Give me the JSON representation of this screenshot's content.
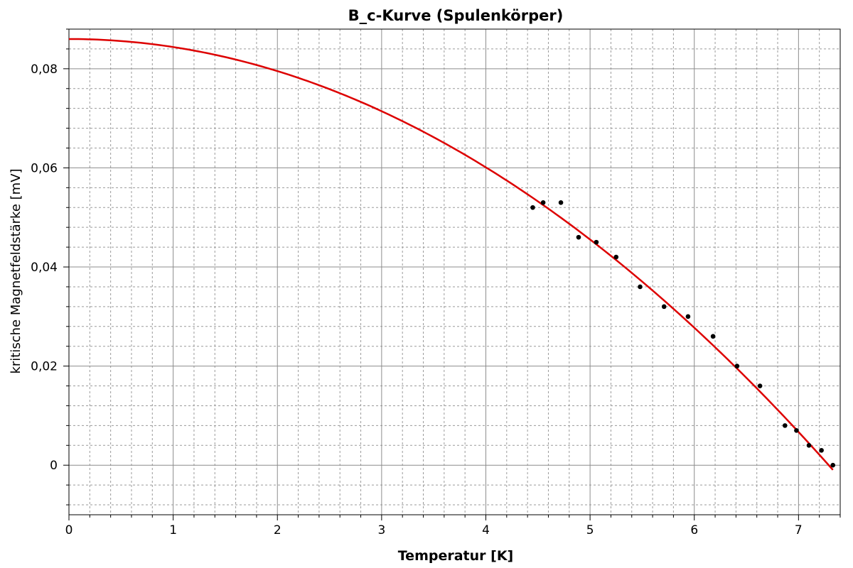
{
  "chart_data": {
    "type": "scatter",
    "title": "B_c-Kurve (Spulenkörper)",
    "xlabel": "Temperatur [K]",
    "ylabel": "kritische Magnetfeldstärke [mV]",
    "xlim": [
      0,
      7.4
    ],
    "ylim": [
      -0.01,
      0.088
    ],
    "x_ticks": [
      {
        "value": 0,
        "label": "0"
      },
      {
        "value": 1,
        "label": "1"
      },
      {
        "value": 2,
        "label": "2"
      },
      {
        "value": 3,
        "label": "3"
      },
      {
        "value": 4,
        "label": "4"
      },
      {
        "value": 5,
        "label": "5"
      },
      {
        "value": 6,
        "label": "6"
      },
      {
        "value": 7,
        "label": "7"
      }
    ],
    "y_ticks": [
      {
        "value": 0,
        "label": "0"
      },
      {
        "value": 0.02,
        "label": "0,02"
      },
      {
        "value": 0.04,
        "label": "0,04"
      },
      {
        "value": 0.06,
        "label": "0,06"
      },
      {
        "value": 0.08,
        "label": "0,08"
      }
    ],
    "grid": true,
    "series": [
      {
        "kind": "points",
        "color": "#000000",
        "points": [
          [
            4.45,
            0.052
          ],
          [
            4.55,
            0.053
          ],
          [
            4.72,
            0.053
          ],
          [
            4.89,
            0.046
          ],
          [
            5.06,
            0.045
          ],
          [
            5.25,
            0.042
          ],
          [
            5.48,
            0.036
          ],
          [
            5.71,
            0.032
          ],
          [
            5.94,
            0.03
          ],
          [
            6.18,
            0.026
          ],
          [
            6.41,
            0.02
          ],
          [
            6.63,
            0.016
          ],
          [
            6.87,
            0.008
          ],
          [
            6.98,
            0.007
          ],
          [
            7.1,
            0.004
          ],
          [
            7.22,
            0.003
          ],
          [
            7.33,
            0.0
          ]
        ]
      },
      {
        "kind": "fit",
        "color": "#dd0000",
        "model": "B0*(1-(T/Tc)^2)",
        "B0": 0.086,
        "Tc": 7.29,
        "x_range": [
          0,
          7.33
        ]
      }
    ]
  }
}
